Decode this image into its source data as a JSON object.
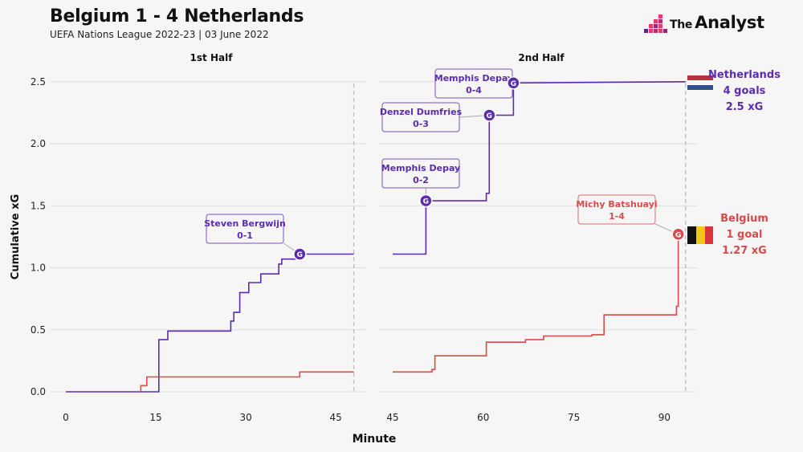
{
  "header": {
    "title": "Belgium 1 - 4 Netherlands",
    "subtitle": "UEFA Nations League 2022-23 | 03 June 2022",
    "brand_prefix": "The",
    "brand_name": "Analyst"
  },
  "colors": {
    "netherlands": "#5b2bb0",
    "belgium": "#d94a4a",
    "grid": "#dddddd",
    "brand": "#e63b6a"
  },
  "chart_data": {
    "type": "line",
    "step": true,
    "xlabel": "Minute",
    "ylabel": "Cumulative xG",
    "ylim": [
      0,
      2.6
    ],
    "yticks": [
      "0.0",
      "0.5",
      "1.0",
      "1.5",
      "2.0",
      "2.5"
    ],
    "grid": true,
    "panels": [
      {
        "title": "1st Half",
        "xlim": [
          0,
          48
        ],
        "xticks": [
          "0",
          "15",
          "30",
          "45"
        ],
        "half_end": 48,
        "series": [
          {
            "name": "Netherlands",
            "points": [
              [
                0,
                0
              ],
              [
                15.5,
                0
              ],
              [
                15.5,
                0.42
              ],
              [
                17,
                0.42
              ],
              [
                17,
                0.49
              ],
              [
                27.5,
                0.49
              ],
              [
                27.5,
                0.57
              ],
              [
                28,
                0.57
              ],
              [
                28,
                0.64
              ],
              [
                29,
                0.64
              ],
              [
                29,
                0.8
              ],
              [
                30.5,
                0.8
              ],
              [
                30.5,
                0.88
              ],
              [
                32.5,
                0.88
              ],
              [
                32.5,
                0.95
              ],
              [
                35.5,
                0.95
              ],
              [
                35.5,
                1.03
              ],
              [
                36,
                1.03
              ],
              [
                36,
                1.07
              ],
              [
                39,
                1.07
              ],
              [
                39,
                1.11
              ],
              [
                48,
                1.11
              ]
            ]
          },
          {
            "name": "Belgium",
            "points": [
              [
                12.5,
                0
              ],
              [
                12.5,
                0.05
              ],
              [
                13.5,
                0.05
              ],
              [
                13.5,
                0.12
              ],
              [
                39,
                0.12
              ],
              [
                39,
                0.16
              ],
              [
                48,
                0.16
              ]
            ]
          }
        ],
        "annotations": [
          {
            "player": "Steven Bergwijn",
            "score": "0-1",
            "minute": 39,
            "xg": 1.11,
            "team": "Netherlands"
          }
        ]
      },
      {
        "title": "2nd Half",
        "xlim": [
          45,
          95
        ],
        "xticks": [
          "45",
          "60",
          "75",
          "90"
        ],
        "half_end": 93.5,
        "series": [
          {
            "name": "Netherlands",
            "points": [
              [
                45,
                1.11
              ],
              [
                50.5,
                1.11
              ],
              [
                50.5,
                1.54
              ],
              [
                60.5,
                1.54
              ],
              [
                60.5,
                1.6
              ],
              [
                61,
                1.6
              ],
              [
                61,
                2.23
              ],
              [
                65,
                2.23
              ],
              [
                65,
                2.49
              ],
              [
                93.5,
                2.5
              ]
            ]
          },
          {
            "name": "Belgium",
            "points": [
              [
                45,
                0.16
              ],
              [
                51.5,
                0.16
              ],
              [
                51.5,
                0.18
              ],
              [
                52,
                0.18
              ],
              [
                52,
                0.29
              ],
              [
                60.5,
                0.29
              ],
              [
                60.5,
                0.4
              ],
              [
                67,
                0.4
              ],
              [
                67,
                0.42
              ],
              [
                70,
                0.42
              ],
              [
                70,
                0.45
              ],
              [
                78,
                0.45
              ],
              [
                78,
                0.46
              ],
              [
                80,
                0.46
              ],
              [
                80,
                0.62
              ],
              [
                92,
                0.62
              ],
              [
                92,
                0.69
              ],
              [
                92.3,
                0.69
              ],
              [
                92.3,
                1.27
              ]
            ]
          }
        ],
        "annotations": [
          {
            "player": "Memphis Depay",
            "score": "0-2",
            "minute": 50.5,
            "xg": 1.54,
            "team": "Netherlands"
          },
          {
            "player": "Denzel Dumfries",
            "score": "0-3",
            "minute": 61,
            "xg": 2.23,
            "team": "Netherlands"
          },
          {
            "player": "Memphis Depay",
            "score": "0-4",
            "minute": 65,
            "xg": 2.49,
            "team": "Netherlands"
          },
          {
            "player": "Michy Batshuayi",
            "score": "1-4",
            "minute": 92.3,
            "xg": 1.27,
            "team": "Belgium"
          }
        ]
      }
    ],
    "goal_marker": "G",
    "team_summaries": [
      {
        "team": "Netherlands",
        "goals": "4 goals",
        "xg": "2.5 xG"
      },
      {
        "team": "Belgium",
        "goals": "1 goal",
        "xg": "1.27 xG"
      }
    ]
  }
}
